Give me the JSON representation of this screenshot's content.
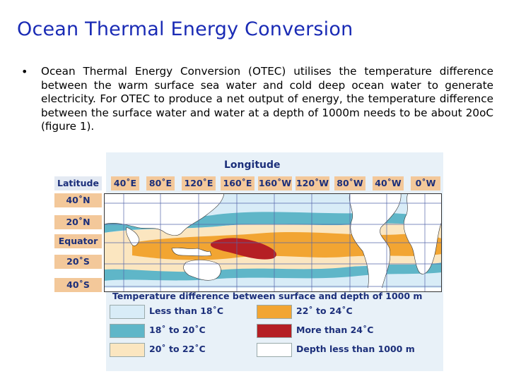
{
  "slide": {
    "title": "Ocean Thermal Energy Conversion",
    "bullet_marker": "•",
    "bullet_text": "Ocean Thermal Energy Conversion (OTEC) utilises the temperature difference between the warm surface sea water and cold deep ocean water to generate electricity. For OTEC to produce a net output of energy, the temperature difference between the surface water and water at a depth of 1000m needs to be about 20oC (figure 1)."
  },
  "figure": {
    "longitude_title": "Longitude",
    "latitude_title": "Latitude",
    "longitudes": [
      "40˚E",
      "80˚E",
      "120˚E",
      "160˚E",
      "160˚W",
      "120˚W",
      "80˚W",
      "40˚W",
      "0˚W"
    ],
    "latitudes": [
      "40˚N",
      "20˚N",
      "Equator",
      "20˚S",
      "40˚S"
    ],
    "legend_title": "Temperature difference between surface and depth of 1000 m",
    "legend": [
      {
        "label": "Less than 18˚C",
        "color": "#d8ecf7"
      },
      {
        "label": "22˚ to 24˚C",
        "color": "#f2a532"
      },
      {
        "label": "18˚ to 20˚C",
        "color": "#5fb6c8"
      },
      {
        "label": "More than 24˚C",
        "color": "#b51f24"
      },
      {
        "label": "20˚ to 22˚C",
        "color": "#fbe6c0"
      },
      {
        "label": "Depth less than 1000 m",
        "color": "#ffffff"
      }
    ]
  }
}
